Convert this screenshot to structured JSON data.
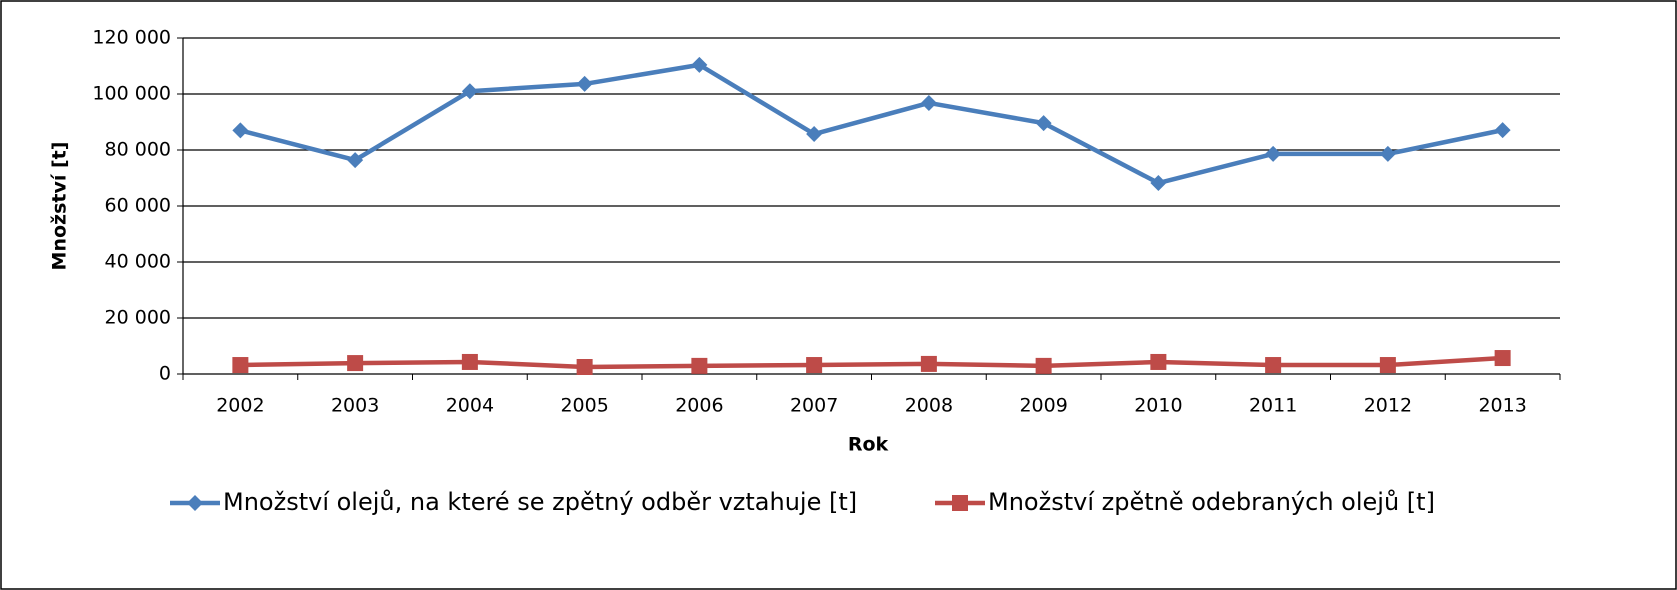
{
  "chart_data": {
    "type": "line",
    "x_label": "Rok",
    "y_label": "Množství [t]",
    "categories": [
      "2002",
      "2003",
      "2004",
      "2005",
      "2006",
      "2007",
      "2008",
      "2009",
      "2010",
      "2011",
      "2012",
      "2013"
    ],
    "series": [
      {
        "name": "Množství olejů, na které se zpětný odběr vztahuje [t]",
        "color": "#4a7ebb",
        "marker": "diamond",
        "values": [
          87000,
          76400,
          101000,
          103600,
          110400,
          85700,
          96800,
          89600,
          68200,
          78600,
          78600,
          87100
        ]
      },
      {
        "name": "Množství zpětně odebraných olejů [t]",
        "color": "#be4b48",
        "marker": "square",
        "values": [
          3200,
          3900,
          4300,
          2500,
          2900,
          3200,
          3600,
          2900,
          4300,
          3200,
          3200,
          5700
        ]
      }
    ],
    "ylim": [
      0,
      120000
    ],
    "yticks": [
      0,
      {
        "value": 20000,
        "label": "20 000"
      },
      {
        "value": 40000,
        "label": "40 000"
      },
      {
        "value": 60000,
        "label": "60 000"
      },
      {
        "value": 80000,
        "label": "80 000"
      },
      {
        "value": 100000,
        "label": "100 000"
      },
      {
        "value": 120000,
        "label": "120 000"
      }
    ],
    "grid": true,
    "legend": "bottom"
  }
}
